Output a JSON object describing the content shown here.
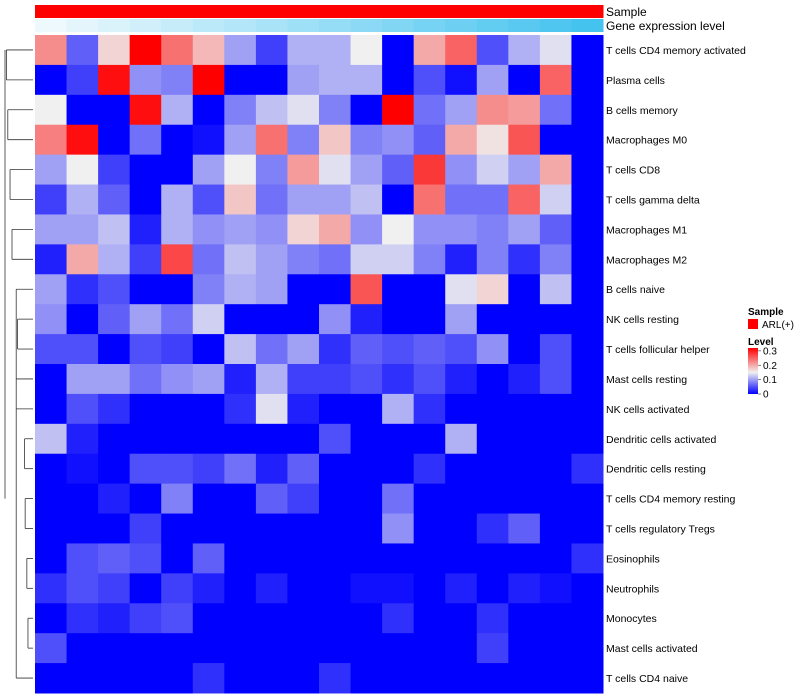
{
  "chart_data": {
    "type": "heatmap",
    "annotation_rows": [
      "Sample",
      "Gene expression level"
    ],
    "rows": [
      "T cells CD4 memory activated",
      "Plasma cells",
      "B cells memory",
      "Macrophages M0",
      "T cells CD8",
      "T cells gamma delta",
      "Macrophages M1",
      "Macrophages M2",
      "B cells naive",
      "NK cells resting",
      "T cells follicular helper",
      "Mast cells resting",
      "NK cells activated",
      "Dendritic cells activated",
      "Dendritic cells resting",
      "T cells CD4 memory resting",
      "T cells regulatory  Tregs",
      "Eosinophils",
      "Neutrophils",
      "Monocytes",
      "Mast cells activated",
      "T cells CD4 naive"
    ],
    "n_columns": 18,
    "values": [
      [
        0.22,
        0.06,
        0.17,
        0.32,
        0.24,
        0.19,
        0.1,
        0.04,
        0.11,
        0.11,
        0.15,
        0.0,
        0.2,
        0.25,
        0.05,
        0.11,
        0.14,
        0.0
      ],
      [
        0.0,
        0.04,
        0.31,
        0.09,
        0.08,
        0.32,
        0.0,
        0.0,
        0.1,
        0.11,
        0.11,
        0.0,
        0.05,
        0.01,
        0.1,
        0.0,
        0.25,
        0.0
      ],
      [
        0.15,
        0.0,
        0.0,
        0.31,
        0.11,
        0.0,
        0.08,
        0.12,
        0.14,
        0.08,
        0.0,
        0.32,
        0.07,
        0.1,
        0.22,
        0.21,
        0.07,
        0.0
      ],
      [
        0.23,
        0.31,
        0.0,
        0.07,
        0.0,
        0.01,
        0.1,
        0.24,
        0.08,
        0.18,
        0.08,
        0.09,
        0.06,
        0.2,
        0.16,
        0.26,
        0.0,
        0.0
      ],
      [
        0.1,
        0.15,
        0.04,
        0.0,
        0.0,
        0.1,
        0.15,
        0.08,
        0.21,
        0.14,
        0.1,
        0.06,
        0.28,
        0.09,
        0.13,
        0.1,
        0.2,
        0.0
      ],
      [
        0.04,
        0.11,
        0.06,
        0.0,
        0.11,
        0.05,
        0.18,
        0.07,
        0.1,
        0.1,
        0.12,
        0.0,
        0.24,
        0.07,
        0.07,
        0.25,
        0.13,
        0.0
      ],
      [
        0.1,
        0.1,
        0.12,
        0.02,
        0.11,
        0.09,
        0.1,
        0.09,
        0.17,
        0.2,
        0.09,
        0.15,
        0.09,
        0.09,
        0.08,
        0.1,
        0.06,
        0.0
      ],
      [
        0.02,
        0.2,
        0.11,
        0.04,
        0.27,
        0.07,
        0.12,
        0.1,
        0.08,
        0.07,
        0.13,
        0.13,
        0.08,
        0.02,
        0.08,
        0.03,
        0.08,
        0.0
      ],
      [
        0.1,
        0.03,
        0.05,
        0.0,
        0.0,
        0.08,
        0.11,
        0.1,
        0.0,
        0.0,
        0.26,
        0.0,
        0.0,
        0.14,
        0.17,
        0.0,
        0.12,
        0.0
      ],
      [
        0.09,
        0.0,
        0.06,
        0.1,
        0.07,
        0.13,
        0.0,
        0.0,
        0.0,
        0.09,
        0.02,
        0.0,
        0.0,
        0.1,
        0.0,
        0.0,
        0.0,
        0.0
      ],
      [
        0.05,
        0.05,
        0.0,
        0.05,
        0.04,
        0.0,
        0.12,
        0.07,
        0.1,
        0.03,
        0.06,
        0.05,
        0.06,
        0.05,
        0.09,
        0.0,
        0.05,
        0.0
      ],
      [
        0.0,
        0.1,
        0.1,
        0.07,
        0.09,
        0.1,
        0.02,
        0.11,
        0.04,
        0.04,
        0.05,
        0.03,
        0.05,
        0.02,
        0.0,
        0.02,
        0.05,
        0.0
      ],
      [
        0.0,
        0.05,
        0.03,
        0.0,
        0.0,
        0.0,
        0.03,
        0.14,
        0.02,
        0.0,
        0.0,
        0.11,
        0.03,
        0.0,
        0.0,
        0.0,
        0.0,
        0.0
      ],
      [
        0.12,
        0.02,
        0.0,
        0.0,
        0.0,
        0.0,
        0.0,
        0.0,
        0.0,
        0.05,
        0.0,
        0.0,
        0.0,
        0.11,
        0.0,
        0.0,
        0.0,
        0.0
      ],
      [
        0.0,
        0.01,
        0.0,
        0.05,
        0.05,
        0.04,
        0.07,
        0.02,
        0.06,
        0.0,
        0.0,
        0.0,
        0.03,
        0.0,
        0.0,
        0.0,
        0.0,
        0.03
      ],
      [
        0.0,
        0.0,
        0.02,
        0.0,
        0.08,
        0.0,
        0.0,
        0.06,
        0.04,
        0.0,
        0.0,
        0.07,
        0.0,
        0.0,
        0.0,
        0.0,
        0.0,
        0.0
      ],
      [
        0.0,
        0.0,
        0.0,
        0.04,
        0.0,
        0.0,
        0.0,
        0.0,
        0.0,
        0.0,
        0.0,
        0.09,
        0.0,
        0.0,
        0.03,
        0.06,
        0.0,
        0.0
      ],
      [
        0.0,
        0.05,
        0.06,
        0.05,
        0.0,
        0.06,
        0.0,
        0.0,
        0.0,
        0.0,
        0.0,
        0.0,
        0.0,
        0.0,
        0.0,
        0.0,
        0.0,
        0.03
      ],
      [
        0.03,
        0.05,
        0.04,
        0.0,
        0.04,
        0.02,
        0.0,
        0.02,
        0.0,
        0.0,
        0.01,
        0.01,
        0.0,
        0.02,
        0.0,
        0.02,
        0.01,
        0.0
      ],
      [
        0.0,
        0.03,
        0.02,
        0.04,
        0.05,
        0.0,
        0.0,
        0.0,
        0.0,
        0.0,
        0.0,
        0.03,
        0.0,
        0.0,
        0.03,
        0.0,
        0.0,
        0.0
      ],
      [
        0.05,
        0.0,
        0.0,
        0.0,
        0.0,
        0.0,
        0.0,
        0.0,
        0.0,
        0.0,
        0.0,
        0.0,
        0.0,
        0.0,
        0.04,
        0.0,
        0.0,
        0.0
      ],
      [
        0.0,
        0.0,
        0.0,
        0.0,
        0.0,
        0.03,
        0.0,
        0.0,
        0.0,
        0.03,
        0.0,
        0.0,
        0.0,
        0.0,
        0.0,
        0.0,
        0.0,
        0.0
      ]
    ],
    "color_scale": {
      "min": 0,
      "mid": 0.15,
      "max": 0.32,
      "low_color": "#0000ff",
      "mid_color": "#f0f0f0",
      "high_color": "#ff0000"
    },
    "sample_annotation": {
      "value": "ARL(+)",
      "color": "#ff0000"
    },
    "gene_expression_gradient": {
      "from_color": "#eef9fd",
      "to_color": "#45c3ef"
    },
    "legend": {
      "sample_title": "Sample",
      "sample_entries": [
        {
          "label": "ARL(+)",
          "color": "#ff0000"
        }
      ],
      "level_title": "Level",
      "level_ticks": [
        {
          "label": "0.3",
          "value": 0.3
        },
        {
          "label": "0.2",
          "value": 0.2
        },
        {
          "label": "0.1",
          "value": 0.1
        },
        {
          "label": "0",
          "value": 0
        }
      ]
    },
    "dendrogram": {
      "merges": [
        [
          0,
          1,
          0.95
        ],
        [
          2,
          3,
          0.9
        ],
        [
          4,
          5,
          0.82
        ],
        [
          6,
          7,
          0.75
        ],
        [
          9,
          10,
          0.55
        ],
        [
          13,
          14,
          0.3
        ],
        [
          15,
          16,
          0.28
        ],
        [
          17,
          18,
          0.22
        ],
        [
          19,
          20,
          0.18
        ]
      ]
    }
  }
}
